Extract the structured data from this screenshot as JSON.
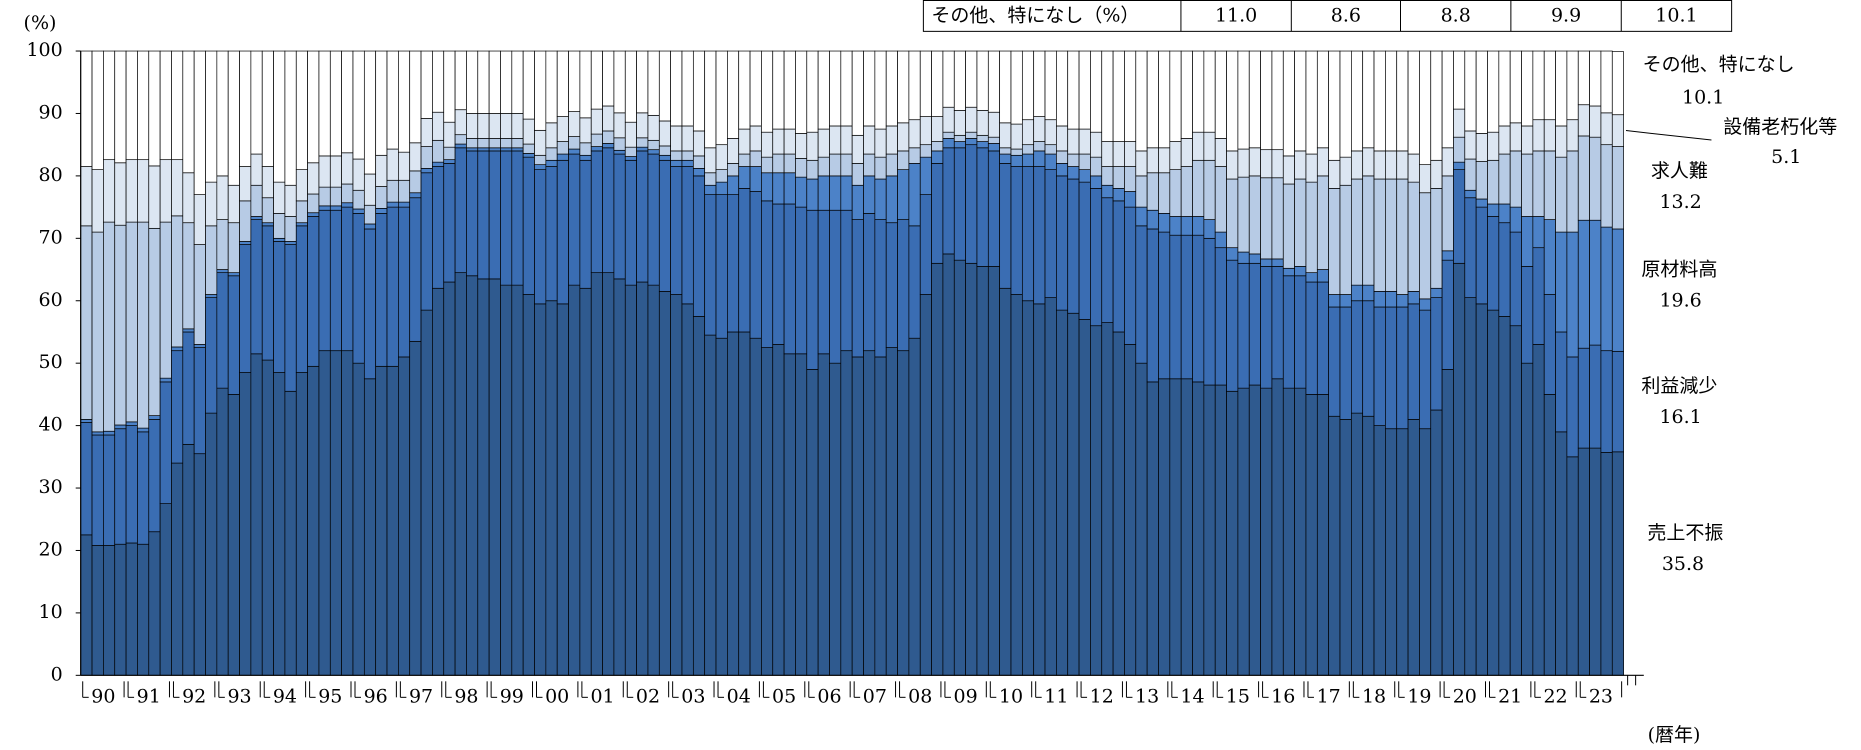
{
  "chart_data": {
    "type": "stacked_bar",
    "y_unit": "(%)",
    "x_unit": "(暦年)",
    "ylim": [
      0,
      100
    ],
    "yticks": [
      0,
      10,
      20,
      30,
      40,
      50,
      60,
      70,
      80,
      90,
      100
    ],
    "categories": [
      "90",
      null,
      null,
      null,
      "91",
      null,
      null,
      null,
      "92",
      null,
      null,
      null,
      "93",
      null,
      null,
      null,
      "94",
      null,
      null,
      null,
      "95",
      null,
      null,
      null,
      "96",
      null,
      null,
      null,
      "97",
      null,
      null,
      null,
      "98",
      null,
      null,
      null,
      "99",
      null,
      null,
      null,
      "00",
      null,
      null,
      null,
      "01",
      null,
      null,
      null,
      "02",
      null,
      null,
      null,
      "03",
      null,
      null,
      null,
      "04",
      null,
      null,
      null,
      "05",
      null,
      null,
      null,
      "06",
      null,
      null,
      null,
      "07",
      null,
      null,
      null,
      "08",
      null,
      null,
      null,
      "09",
      null,
      null,
      null,
      "10",
      null,
      null,
      null,
      "11",
      null,
      null,
      null,
      "12",
      null,
      null,
      null,
      "13",
      null,
      null,
      null,
      "14",
      null,
      null,
      null,
      "15",
      null,
      null,
      null,
      "16",
      null,
      null,
      null,
      "17",
      null,
      null,
      null,
      "18",
      null,
      null,
      null,
      "19",
      null,
      null,
      null,
      "20",
      null,
      null,
      null,
      "21",
      null,
      null,
      null,
      "22",
      null,
      null,
      null,
      "23",
      null,
      null,
      null
    ],
    "series": [
      {
        "name": "売上不振",
        "color": "#2f5a8f",
        "values": [
          22.5,
          20.8,
          20.8,
          21.0,
          21.2,
          21.0,
          23.0,
          27.5,
          34.0,
          37.0,
          35.5,
          42.0,
          46.0,
          45.0,
          48.5,
          51.5,
          50.5,
          48.5,
          45.5,
          48.5,
          49.5,
          52.0,
          52.0,
          52.0,
          50.0,
          47.5,
          49.5,
          49.5,
          51.0,
          53.5,
          58.5,
          62.0,
          63.0,
          64.5,
          64.0,
          63.5,
          63.5,
          62.5,
          62.5,
          61.0,
          59.5,
          60.0,
          59.5,
          62.5,
          62.0,
          64.5,
          64.5,
          63.5,
          62.5,
          63.0,
          62.5,
          61.5,
          61.0,
          59.5,
          57.5,
          54.5,
          54.0,
          55.0,
          55.0,
          54.0,
          52.5,
          53.0,
          51.5,
          51.5,
          49.0,
          51.5,
          50.0,
          52.0,
          51.0,
          52.0,
          51.0,
          52.5,
          52.0,
          54.0,
          61.0,
          66.0,
          67.5,
          66.5,
          66.0,
          65.5,
          65.5,
          62.0,
          61.0,
          60.0,
          59.5,
          60.5,
          58.5,
          58.0,
          57.0,
          56.0,
          56.5,
          55.0,
          53.0,
          50.0,
          47.0,
          47.5,
          47.5,
          47.5,
          47.0,
          46.5,
          46.5,
          45.5,
          46.0,
          46.5,
          46.0,
          47.5,
          46.0,
          46.0,
          45.0,
          45.0,
          41.5,
          41.0,
          42.0,
          41.5,
          40.0,
          39.5,
          39.5,
          41.0,
          39.5,
          42.5,
          49.0,
          66.0,
          60.5,
          59.5,
          58.5,
          57.5,
          56.0,
          50.0,
          53.0,
          45.0,
          39.0,
          35.0,
          36.4,
          36.4,
          35.7,
          35.8
        ]
      },
      {
        "name": "利益減少",
        "color": "#3a6db3",
        "values": [
          18,
          17.7,
          17.7,
          18.5,
          18.8,
          18,
          18,
          19.5,
          18,
          18,
          17,
          18.5,
          18.5,
          19,
          20.5,
          21.5,
          21.5,
          21,
          23.5,
          23.5,
          24,
          22.5,
          22.5,
          23,
          24,
          24,
          24.5,
          25.5,
          24,
          23,
          22,
          19.5,
          19,
          20,
          20,
          20.5,
          20.5,
          21.5,
          21.5,
          22,
          21.5,
          21.5,
          23,
          21,
          20.5,
          19.5,
          20,
          20,
          20,
          21,
          21,
          21,
          20.5,
          22,
          22.5,
          22.5,
          23,
          22,
          23,
          23.5,
          23.5,
          22.5,
          24,
          23.5,
          25.5,
          23,
          24.5,
          22.5,
          22,
          22,
          22,
          20,
          21,
          18,
          16,
          16,
          17,
          18,
          19,
          19,
          18.5,
          20,
          20.5,
          21.5,
          22,
          20.5,
          21.5,
          21.5,
          22,
          22,
          20,
          21,
          22,
          22,
          24.5,
          23.5,
          23,
          23,
          23.5,
          23.5,
          22,
          21,
          20,
          19.5,
          19.5,
          18,
          18,
          18,
          18,
          18,
          17.5,
          18,
          18,
          18.5,
          19,
          19.5,
          19.5,
          18.5,
          19,
          18,
          17.5,
          15,
          16,
          15.5,
          15,
          15,
          15,
          15.5,
          15.5,
          16,
          16,
          16,
          16,
          16.5,
          16.3,
          16.1
        ]
      },
      {
        "name": "原材料高",
        "color": "#4c82c8",
        "values": [
          0.5,
          0.5,
          0.6,
          0.6,
          0.6,
          0.6,
          0.6,
          0.6,
          0.6,
          0.5,
          0.5,
          0.5,
          0.5,
          0.5,
          0.5,
          0.5,
          0.5,
          0.5,
          0.5,
          0.5,
          0.6,
          0.7,
          0.7,
          0.7,
          0.7,
          0.8,
          0.8,
          0.8,
          0.8,
          0.8,
          0.7,
          0.7,
          0.6,
          0.6,
          0.5,
          0.5,
          0.5,
          0.5,
          0.5,
          0.6,
          0.8,
          1.0,
          1.0,
          0.8,
          0.8,
          0.7,
          0.7,
          0.6,
          0.6,
          0.6,
          0.7,
          0.8,
          1.0,
          1.0,
          1.2,
          1.5,
          2.0,
          3.0,
          3.5,
          4.0,
          4.5,
          5.0,
          5.0,
          4.8,
          5.0,
          5.5,
          5.5,
          5.5,
          5.5,
          6.0,
          6.5,
          7.5,
          8.0,
          10.0,
          6.0,
          2.0,
          1.5,
          1.0,
          1.0,
          1.0,
          1.2,
          1.5,
          1.8,
          2.0,
          2.5,
          2.5,
          2.0,
          2.0,
          2.0,
          2.0,
          2.0,
          2.0,
          2.5,
          3.0,
          3.0,
          3.0,
          3.0,
          3.0,
          3.0,
          3.0,
          2.5,
          2.0,
          1.8,
          1.5,
          1.2,
          1.2,
          1.2,
          1.5,
          1.5,
          2.0,
          2.0,
          2.0,
          2.5,
          2.5,
          2.5,
          2.5,
          2.0,
          2.0,
          1.8,
          1.5,
          1.5,
          1.2,
          1.2,
          1.3,
          2.0,
          3.0,
          4.0,
          8.0,
          5.0,
          12.0,
          16.0,
          20.0,
          20.5,
          20.0,
          19.8,
          19.6
        ]
      },
      {
        "name": "求人難",
        "color": "#b7cbe5",
        "values": [
          31,
          32,
          33.5,
          32,
          32,
          33,
          30,
          25,
          21,
          17,
          16,
          11,
          8,
          8,
          6.5,
          5,
          4,
          4,
          4,
          3.5,
          3,
          3,
          3,
          3,
          3,
          3,
          3.5,
          3.5,
          3.5,
          3.5,
          3.5,
          3.5,
          2,
          1.5,
          1.5,
          1.5,
          1.5,
          1.5,
          1.5,
          1.5,
          1.5,
          2,
          2,
          2,
          2,
          2,
          2,
          2,
          1.5,
          1.5,
          1.5,
          1.5,
          1.5,
          1.5,
          2,
          2,
          2,
          2,
          2,
          2.5,
          2.5,
          3,
          3,
          3,
          3,
          3,
          3.5,
          3.5,
          3.5,
          3.5,
          3.5,
          3.5,
          3,
          2.5,
          2,
          1.5,
          1,
          1,
          1,
          1,
          1,
          1,
          1,
          1.5,
          1.5,
          1.5,
          2,
          2,
          2.5,
          3,
          3,
          3.5,
          4,
          5,
          6,
          6.5,
          7.5,
          8,
          9,
          9.5,
          10.5,
          11,
          12,
          12.5,
          13,
          13,
          13.5,
          14,
          14.5,
          15,
          17,
          17.5,
          17,
          17.5,
          18,
          18,
          18.5,
          17.5,
          17,
          16,
          12,
          4,
          5,
          6,
          7,
          8,
          9,
          10,
          10.5,
          11,
          12,
          13,
          13.5,
          13.3,
          13.2,
          13.2
        ]
      },
      {
        "name": "設備老朽化等",
        "color": "#dce6f2",
        "values": [
          9.5,
          10,
          10,
          10,
          10,
          10,
          10,
          10,
          9,
          8,
          8,
          7,
          7,
          6,
          5.5,
          5,
          5,
          5,
          5,
          5,
          5,
          5,
          5,
          5,
          5,
          5,
          5,
          5,
          4.5,
          4.5,
          4.5,
          4.5,
          4,
          4,
          4,
          4,
          4,
          4,
          4,
          4,
          4,
          4,
          4,
          4,
          4,
          4,
          4,
          4,
          4,
          4,
          4,
          4,
          4,
          4,
          4,
          4,
          4,
          4,
          4,
          4,
          4,
          4,
          4,
          4,
          4.5,
          4.5,
          4.5,
          4.5,
          4.5,
          4.5,
          4.5,
          4.5,
          4.5,
          4.5,
          4.5,
          4,
          4,
          4,
          4,
          4,
          4,
          4,
          4,
          4,
          4,
          4,
          4,
          4,
          4,
          4,
          4,
          4,
          4,
          4,
          4,
          4,
          4.5,
          4.5,
          4.5,
          4.5,
          4.5,
          4.5,
          4.5,
          4.5,
          4.5,
          4.5,
          4.5,
          4.5,
          4.5,
          4.5,
          4.5,
          4.5,
          4.5,
          4.5,
          4.5,
          4.5,
          4.5,
          4.5,
          4.5,
          4.5,
          4.5,
          4.5,
          4.5,
          4.5,
          4.5,
          4.5,
          4.5,
          4.5,
          5,
          5,
          5,
          5,
          5,
          5,
          5.1,
          5.1
        ]
      },
      {
        "name": "その他、特になし",
        "color": "#ffffff",
        "values": [
          18.5,
          19,
          17.4,
          17.9,
          17.4,
          17.4,
          18.4,
          17.4,
          17.4,
          19.5,
          23,
          21,
          20,
          21.5,
          18.5,
          16.5,
          18.5,
          21,
          21.5,
          19,
          17.9,
          16.8,
          16.8,
          16.3,
          17.3,
          19.7,
          16.7,
          15.7,
          16.2,
          14.7,
          10.8,
          9.8,
          11.4,
          9.4,
          10,
          10,
          10,
          10,
          10,
          10.9,
          12.7,
          11.5,
          10.5,
          9.7,
          10.7,
          9.3,
          8.8,
          9.9,
          11.4,
          9.9,
          10.3,
          11.2,
          12,
          12,
          12.8,
          15.5,
          15,
          14,
          12.5,
          12,
          13,
          12.5,
          12.5,
          13.2,
          13,
          12.5,
          12,
          12,
          13.5,
          12,
          12.5,
          12,
          11.5,
          11,
          10.5,
          10.5,
          9,
          9.5,
          9,
          9.5,
          9.8,
          11.5,
          11.7,
          11,
          10.5,
          11,
          12,
          12.5,
          12.5,
          13,
          14.5,
          14.5,
          14.5,
          16,
          15.5,
          15.5,
          14.5,
          14,
          13,
          13,
          14,
          16,
          15.7,
          15.5,
          15.8,
          15.8,
          16.8,
          16,
          16.5,
          15.5,
          17.5,
          17,
          16,
          15.5,
          16,
          16,
          16,
          16.5,
          18.2,
          17.5,
          15.5,
          9.3,
          12.8,
          13.2,
          13,
          12,
          11.5,
          12,
          11,
          11,
          12,
          11,
          8.6,
          8.8,
          9.9,
          10.1
        ]
      }
    ],
    "table": {
      "label": "その他、特になし（%）",
      "values": [
        "11.0",
        "8.6",
        "8.8",
        "9.9",
        "10.1"
      ]
    }
  }
}
